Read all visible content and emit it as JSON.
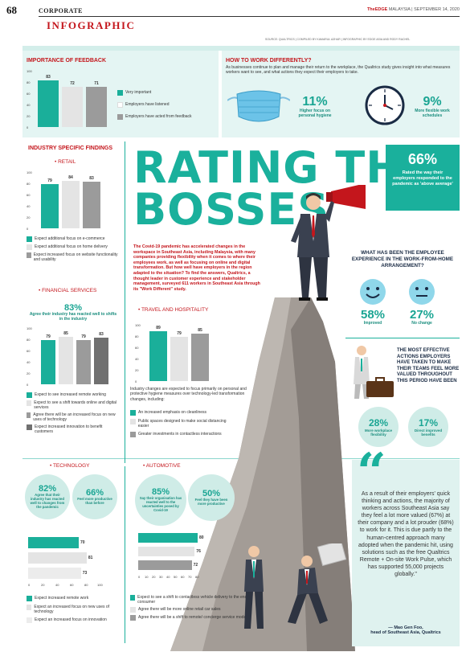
{
  "header": {
    "page": "68",
    "section": "CORPORATE",
    "kicker": "INFOGRAPHIC",
    "date_prefix": "TheEDGE",
    "date": " MALAYSIA | SEPTEMBER 14, 2020",
    "source": "SOURCE: QUALTRICS | COMPILED BY KAMARUL AZHAR | INFOGRAPHIC BY EDGE ASIA AND RODY RACHEL"
  },
  "importance": {
    "title": "IMPORTANCE OF FEEDBACK",
    "ticks": [
      "100",
      "80",
      "60",
      "40",
      "20",
      "0"
    ],
    "values": [
      83,
      72,
      71
    ],
    "value_labels": [
      "83",
      "72",
      "71"
    ],
    "legend": [
      "Very important",
      "Employers have listened",
      "Employers have acted from feedback"
    ]
  },
  "how": {
    "title": "HOW TO WORK DIFFERENTLY?",
    "desc": "As businesses continue to plan and manage their return to the workplace, the Qualtrics study gives insight into what measures workers want to see, and what actions they expect their employers to take.",
    "stat1_pct": "11%",
    "stat1_label": "Higher focus on personal hygiene",
    "stat2_pct": "9%",
    "stat2_label": "More flexible work schedules"
  },
  "industry": {
    "title": "INDUSTRY SPECIFIC FINDINGS"
  },
  "retail": {
    "title": "• RETAIL",
    "ticks": [
      "100",
      "80",
      "60",
      "40",
      "20",
      "0"
    ],
    "values": [
      79,
      84,
      83
    ],
    "value_labels": [
      "79",
      "84",
      "83"
    ],
    "legend": [
      "Expect additional focus on e-commerce",
      "Expect additional focus on home delivery",
      "Expect increased focus on website functionality and usability"
    ]
  },
  "financial": {
    "title": "• FINANCIAL SERVICES",
    "pct": "83%",
    "pct_label": "Agree their industry has reacted well to shifts in the industry",
    "ticks": [
      "100",
      "80",
      "60",
      "40",
      "20",
      "0"
    ],
    "values": [
      79,
      85,
      79,
      83
    ],
    "value_labels": [
      "79",
      "85",
      "79",
      "83"
    ],
    "legend": [
      "Expect to see increased remote working",
      "Expect to see a shift towards online and digital services",
      "Agree there will be an increased focus on new uses of technology",
      "Expect increased innovation to benefit customers"
    ]
  },
  "travel": {
    "title": "• TRAVEL AND HOSPITALITY",
    "ticks": [
      "100",
      "80",
      "60",
      "40",
      "20",
      "0"
    ],
    "values": [
      89,
      79,
      85
    ],
    "value_labels": [
      "89",
      "79",
      "85"
    ],
    "desc": "Industry changes are expected to focus primarily on personal and protective hygiene measures over technology-led transformation changes, including:",
    "legend": [
      "An increased emphasis on cleanliness",
      "Public spaces designed to make social distancing easier",
      "Greater investments in contactless interactions"
    ]
  },
  "technology": {
    "title": "• TECHNOLOGY",
    "c1_pct": "82%",
    "c1_label": "Agree that their industry has reacted well to changes from the pandemic",
    "c2_pct": "66%",
    "c2_label": "Feel more productive than before",
    "values": [
      70,
      81,
      73
    ],
    "value_labels": [
      "70",
      "81",
      "73"
    ],
    "ticks": [
      "0",
      "20",
      "40",
      "60",
      "80",
      "100"
    ],
    "legend": [
      "Expect increased remote work",
      "Expect an increased focus on new uses of technology",
      "Expect an increased focus on innovation"
    ]
  },
  "automotive": {
    "title": "• AUTOMOTIVE",
    "c1_pct": "85%",
    "c1_label": "Say their organisation has reacted well to the uncertainties posed by Covid-19",
    "c2_pct": "50%",
    "c2_label": "Feel they have been more productive",
    "values": [
      80,
      76,
      72
    ],
    "value_labels": [
      "80",
      "76",
      "72"
    ],
    "ticks": [
      "0",
      "10",
      "20",
      "30",
      "40",
      "50",
      "60",
      "70",
      "80"
    ],
    "legend": [
      "Expect to see a shift to contactless vehicle delivery to the end-consumer",
      "Agree there will be more online retail car sales",
      "Agree there will be a shift to remote/ concierge service models"
    ]
  },
  "main": {
    "title1": "RATING THE",
    "title2": "BOSSES",
    "intro": "The Covid-19 pandemic has accelerated changes in the workspace in Southeast Asia, including Malaysia, with many companies providing flexibility when it comes to where their employees work, as well as focusing on online and digital transformation. But how well have employers in the region adapted to the situation? To find the answers, Qualtrics, a thought leader in customer experience and stakeholder management, surveyed 611 workers in Southeast Asia through its \"Work Different\" study.",
    "stat_pct": "66%",
    "stat_label": "Rated the way their employers responded to the pandemic as 'above average'"
  },
  "experience": {
    "question": "WHAT HAS BEEN THE EMPLOYEE EXPERIENCE IN THE WORK-FROM-HOME ARRANGEMENT?",
    "p1": "58%",
    "l1": "Improved",
    "p2": "27%",
    "l2": "No change"
  },
  "actions": {
    "title": "THE MOST EFFECTIVE ACTIONS EMPLOYERS HAVE TAKEN TO MAKE THEIR TEAMS FEEL MORE VALUED THROUGHOUT THIS PERIOD HAVE BEEN",
    "p1": "28%",
    "l1": "More workplace flexibility",
    "p2": "17%",
    "l2": "Direct improved benefits"
  },
  "quote": {
    "mark": "“",
    "text": "As a result of their employers' quick thinking and actions, the majority of workers across Southeast Asia say they feel a lot more valued (67%) at their company and a lot prouder (68%) to work for it. This is due partly to the human-centred approach many adopted when the pandemic hit, using solutions such as the free Qualtrics Remote + On-site Work Pulse, which has supported 55,000 projects globally.\"",
    "author": "— Mao Gen Foo,",
    "role": "head of Southeast Asia, Qualtrics"
  },
  "colors": {
    "teal": "#1aaf9a",
    "red": "#c4161c",
    "light_grey": "#e4e4e4",
    "mid_grey": "#9b9b9b",
    "dark_grey": "#707070"
  }
}
